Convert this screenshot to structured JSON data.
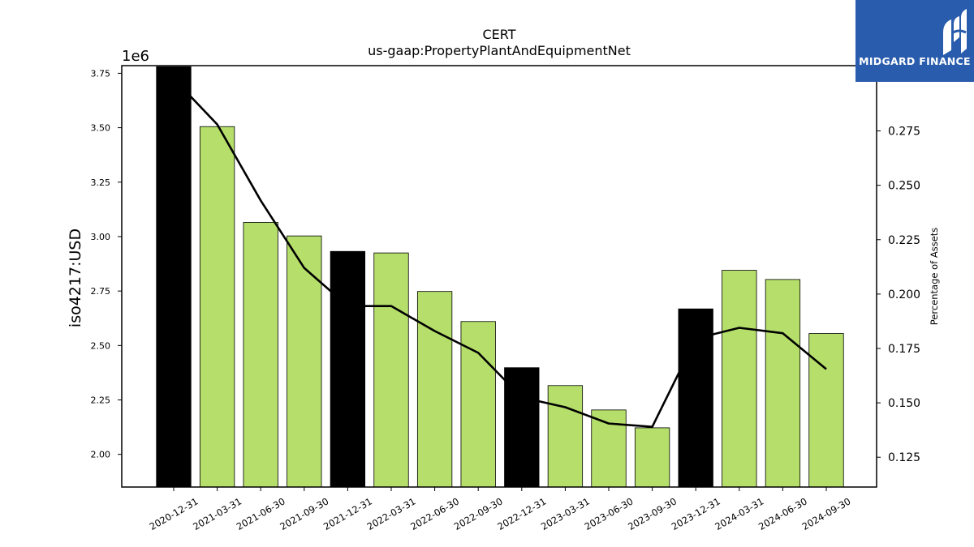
{
  "chart_data": {
    "type": "bar",
    "title": "CERT",
    "subtitle": "us-gaap:PropertyPlantAndEquipmentNet",
    "ylabel": "iso4217:USD",
    "y_scale_label": "1e6",
    "y2label": "Percentage of Assets",
    "categories": [
      "2020-12-31",
      "2021-03-31",
      "2021-06-30",
      "2021-09-30",
      "2021-12-31",
      "2022-03-31",
      "2022-06-30",
      "2022-09-30",
      "2022-12-31",
      "2023-03-31",
      "2023-06-30",
      "2023-09-30",
      "2023-12-31",
      "2024-03-31",
      "2024-06-30",
      "2024-09-30"
    ],
    "values": [
      3780000,
      3505000,
      3065000,
      3003000,
      2932000,
      2925000,
      2748000,
      2610000,
      2398000,
      2316000,
      2204000,
      2122000,
      2668000,
      2845000,
      2803000,
      2555000
    ],
    "bar_kind": [
      "annual",
      "quarter",
      "quarter",
      "quarter",
      "annual",
      "quarter",
      "quarter",
      "quarter",
      "annual",
      "quarter",
      "quarter",
      "quarter",
      "annual",
      "quarter",
      "quarter",
      "quarter"
    ],
    "colors": {
      "annual": "#000000",
      "quarter": "#b5df6a",
      "line": "#000000"
    },
    "line_series": {
      "name": "Percentage of Assets",
      "values": [
        0.299,
        0.278,
        0.243,
        0.212,
        0.1945,
        0.1945,
        0.183,
        0.173,
        0.1525,
        0.148,
        0.1405,
        0.139,
        0.1795,
        0.1845,
        0.182,
        0.1655
      ]
    },
    "ylim": [
      1850000,
      3785000
    ],
    "y_ticks": [
      2000000,
      2250000,
      2500000,
      2750000,
      3000000,
      3250000,
      3500000,
      3750000
    ],
    "y_tick_labels": [
      "2.00",
      "2.25",
      "2.50",
      "2.75",
      "3.00",
      "3.25",
      "3.50",
      "3.75"
    ],
    "y2lim": [
      0.1113,
      0.305
    ],
    "y2_ticks": [
      0.125,
      0.15,
      0.175,
      0.2,
      0.225,
      0.25,
      0.275
    ],
    "y2_tick_labels": [
      "0.125",
      "0.150",
      "0.175",
      "0.200",
      "0.225",
      "0.250",
      "0.275"
    ],
    "grid": false
  },
  "logo": {
    "text": "MIDGARD FINANCE"
  }
}
